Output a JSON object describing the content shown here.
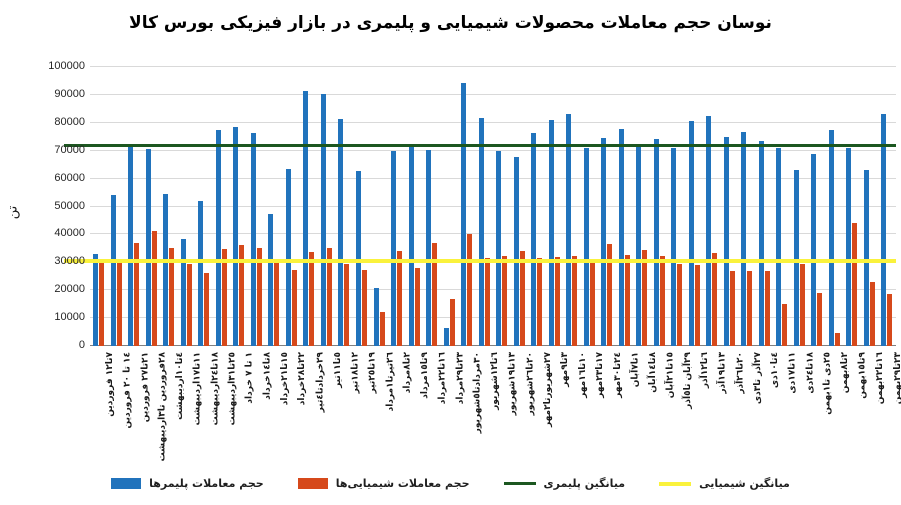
{
  "chart_data": {
    "type": "bar",
    "title": "نوسان حجم معاملات محصولات شیمیایی و پلیمری در بازار فیزیکی بورس کالا",
    "ylabel": "تن",
    "ylim": [
      0,
      100000
    ],
    "ytick_step": 10000,
    "yticks": [
      0,
      10000,
      20000,
      30000,
      40000,
      50000,
      60000,
      70000,
      80000,
      90000,
      100000
    ],
    "grid": true,
    "legend_position": "bottom",
    "categories": [
      "٧تا١٢ فروردین",
      "١٤ تا ٢٠ فروردین",
      "٢١تا٢٧ فروردین",
      "٢٨فروردین تا٣اردیبهشت",
      "٤تا١٠اردیبهشت",
      "١١تا١٧اردیبهشت",
      "١٨تا٢٤اردیبهشت",
      "٢٥تا٣١اردیبهشت",
      "١ تا ٧ خرداد",
      "٨تا١٤خرداد",
      "١٥تا٢١خرداد",
      "٢٢تا٢٨خرداد",
      "٢٩خردادتا٤تیر",
      "٥تا١١تیر",
      "١٢تا١٨تیر",
      "١٩تا٢٥تیر",
      "٢٦تیرتا١مرداد",
      "٢تا٨مرداد",
      "٩تا١٥مرداد",
      "١٦تا٢٢مرداد",
      "٢٣تا٢٩مرداد",
      "٣٠مردادتا٥شهریور",
      "٦تا١٢شهریور",
      "١٣تا١٩شهریور",
      "٢٠تا٢٦شهریور",
      "٢٧شهریورتا٢مهر",
      "٣تا٩مهر",
      "١٠تا١٦مهر",
      "١٧تا٢٣مهر",
      "٢٤تا٣٠مهر",
      "١تا٧آبان",
      "٨تا١٤آبان",
      "١٥تا٢١آبان",
      "٢٩آبان تا٥آذر",
      "٦تا١٢آذر",
      "١٣تا١٩آذر",
      "٢٠تا٢٦آذر",
      "٢٧آذر تا٣دی",
      "٤تا١٠دی",
      "١١تا١٧دی",
      "١٨تا٢٤دی",
      "٢٥دی تا١بهمن",
      "٢تا٨بهمن",
      "٩تا١٥بهمن",
      "١٦تا٢٢بهمن",
      "٢٣تا٢٩بهمن"
    ],
    "series": [
      {
        "name": "حجم معاملات پلیمرها",
        "color": "#2173bc",
        "values": [
          33000,
          54000,
          72000,
          70500,
          54500,
          38500,
          52000,
          77500,
          78500,
          76200,
          47400,
          63300,
          91300,
          90400,
          81300,
          62800,
          20700,
          69900,
          72000,
          70400,
          6400,
          94200,
          81900,
          69900,
          67800,
          76400,
          80900,
          83300,
          70800,
          74700,
          77700,
          72200,
          74300,
          70800,
          80600,
          82300,
          75000,
          76700,
          73400,
          70800,
          63000,
          68700,
          77300,
          70800,
          63000,
          83100
        ]
      },
      {
        "name": "حجم معاملات شیمیایی‌ها",
        "color": "#d6491b",
        "values": [
          30500,
          30000,
          36800,
          41200,
          35200,
          29400,
          26300,
          34700,
          36300,
          35000,
          29800,
          27200,
          33800,
          35000,
          29400,
          27100,
          12300,
          33900,
          27900,
          37000,
          16700,
          40300,
          31700,
          32200,
          34000,
          31700,
          32000,
          32300,
          29800,
          36400,
          32800,
          34400,
          32200,
          29400,
          29000,
          33400,
          26900,
          27000,
          26900,
          14900,
          29300,
          18900,
          4800,
          44200,
          23000,
          18500
        ]
      }
    ],
    "reference_lines": [
      {
        "name": "میانگین پلیمری",
        "value": 71600,
        "color": "#1c5720"
      },
      {
        "name": "میانگین شیمیایی",
        "value": 30300,
        "color": "#faf23c"
      }
    ]
  },
  "legend": {
    "polymer_volume": "حجم معاملات پلیمرها",
    "chemical_volume": "حجم معاملات شیمیایی‌ها",
    "polymer_average": "میانگین پلیمری",
    "chemical_average": "میانگین شیمیایی"
  }
}
